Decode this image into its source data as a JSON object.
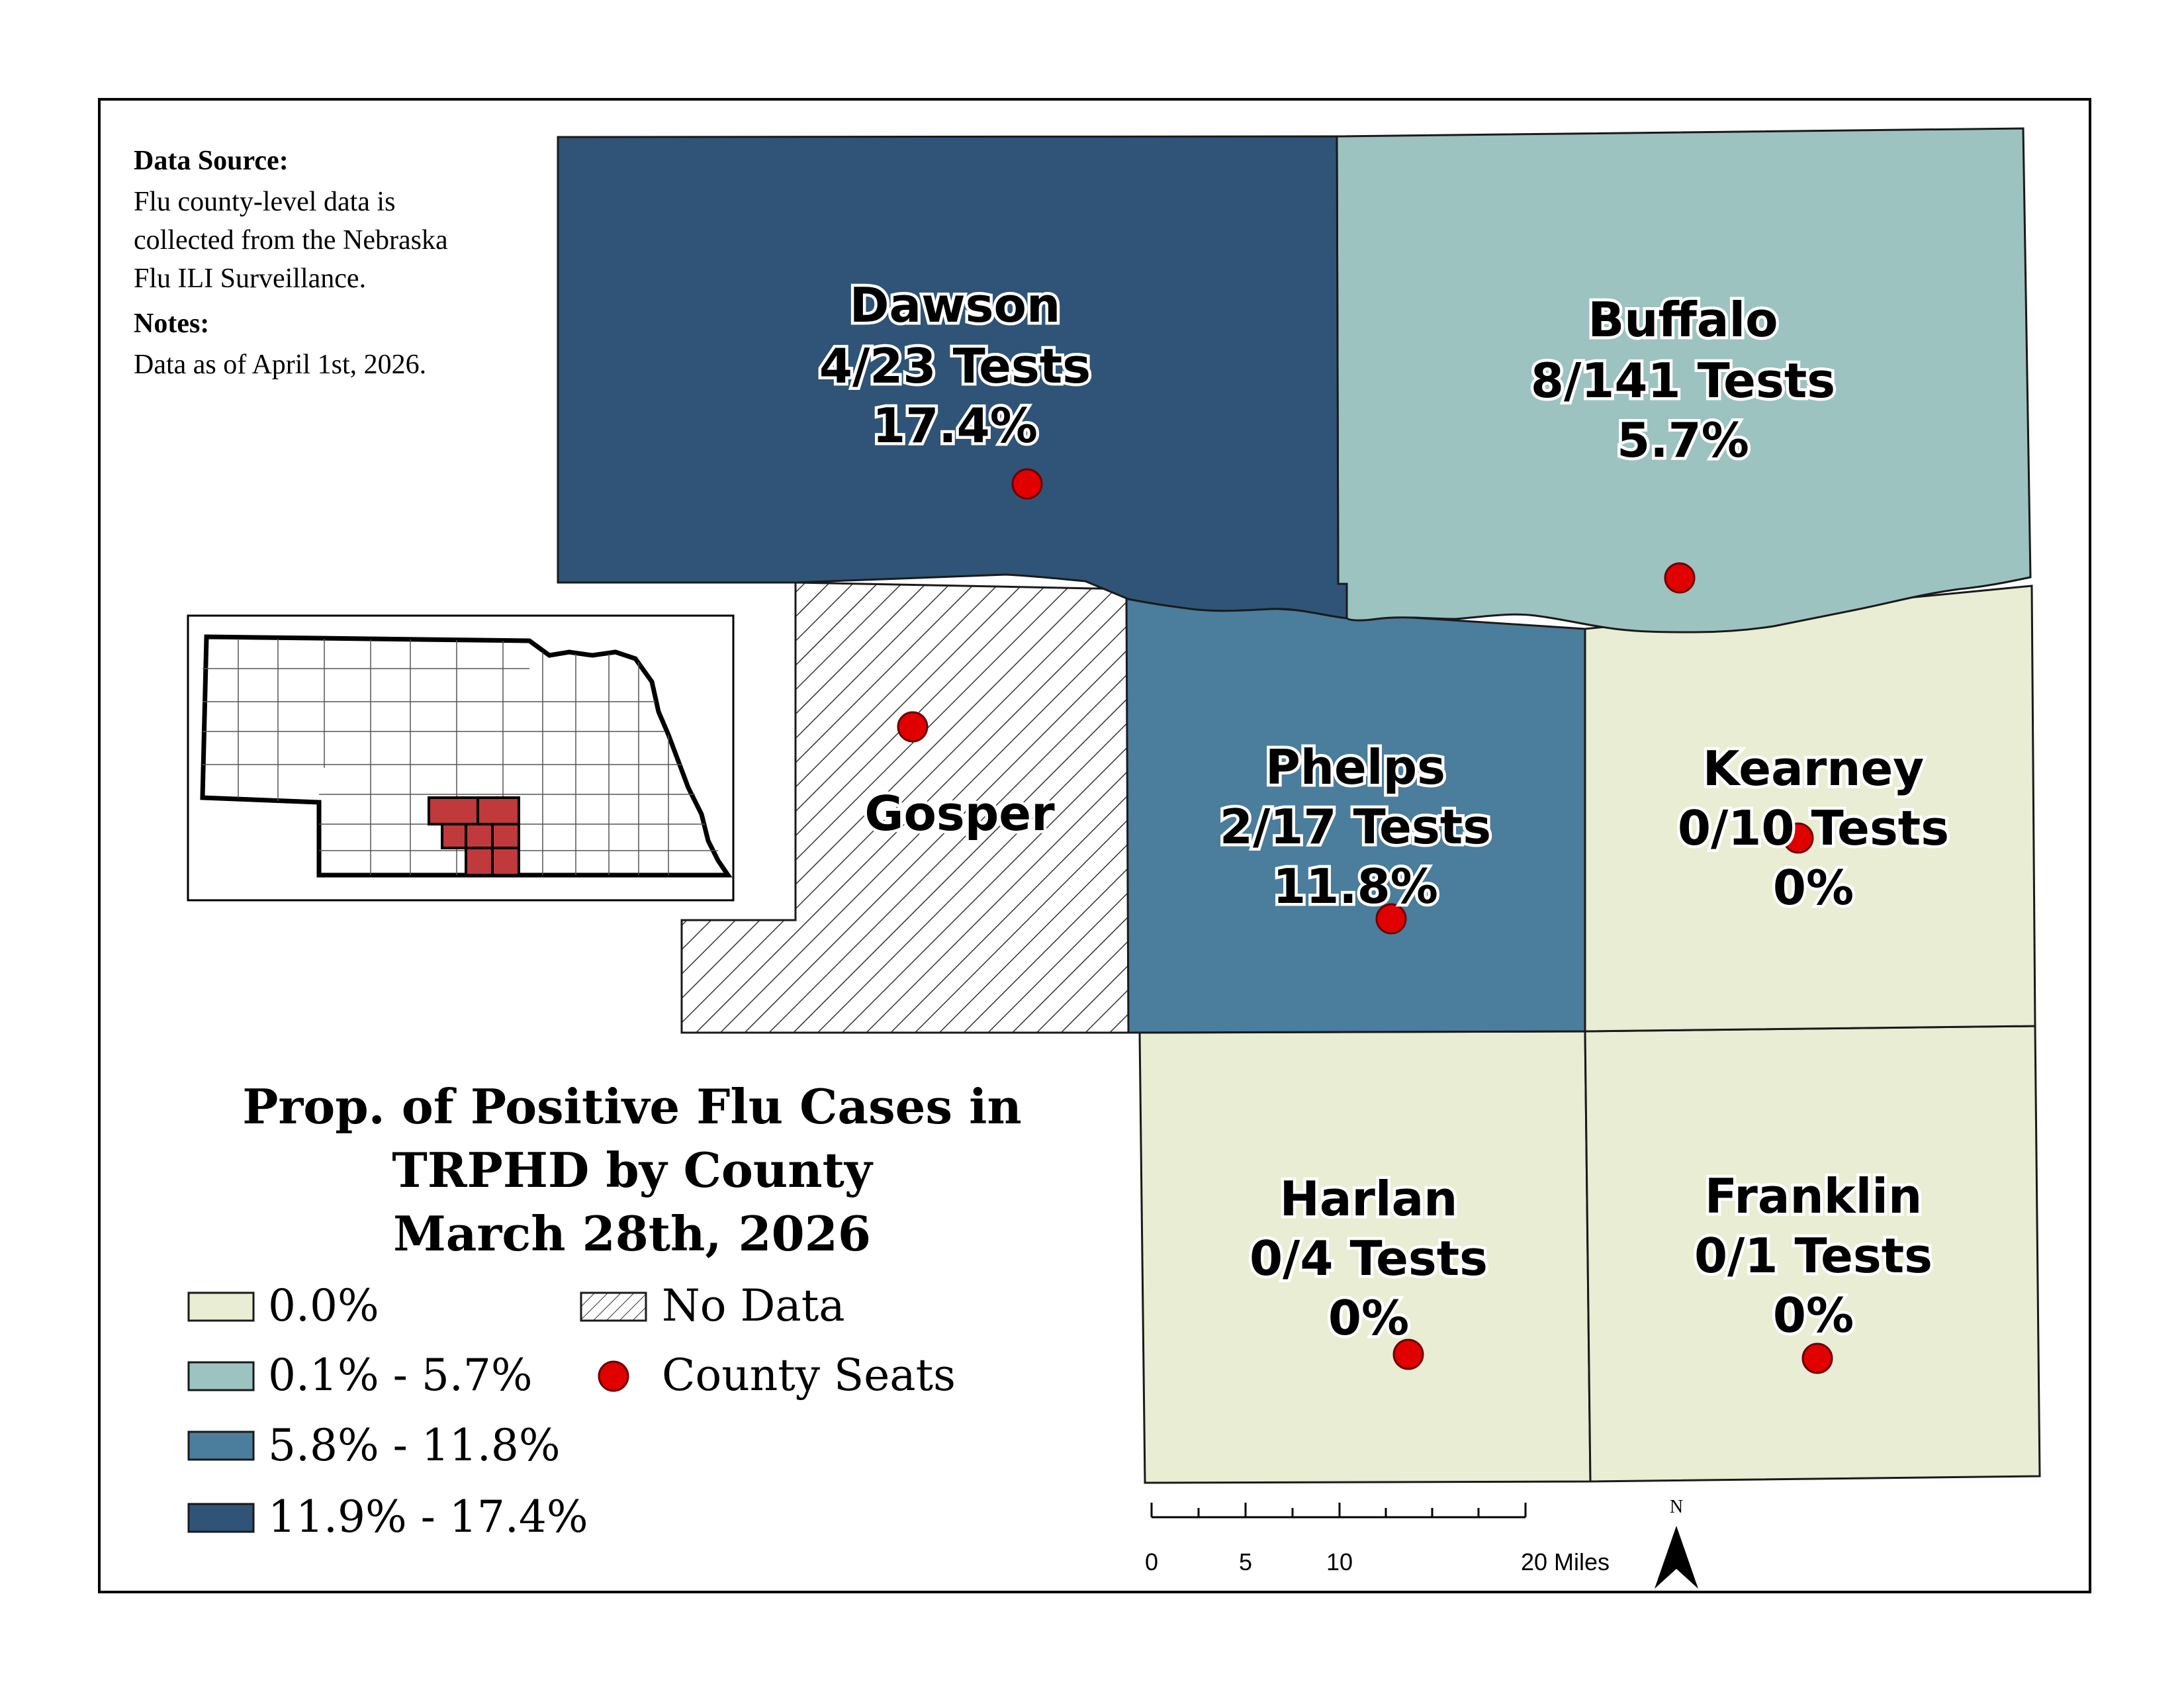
{
  "source": {
    "heading": "Data Source:",
    "lines": [
      "Flu county-level data is",
      "collected from the Nebraska",
      "Flu ILI Surveillance."
    ],
    "notes_heading": "Notes:",
    "notes": "Data as of April 1st, 2026."
  },
  "title": {
    "line1": "Prop. of Positive Flu Cases in",
    "line2": "TRPHD by County",
    "line3": "March 28th, 2026"
  },
  "legend": {
    "classes": [
      {
        "label": "0.0%",
        "color": "#e8edd4"
      },
      {
        "label": "0.1% - 5.7%",
        "color": "#9cc3c0"
      },
      {
        "label": "5.8% - 11.8%",
        "color": "#4b7d9c"
      },
      {
        "label": "11.9% - 17.4%",
        "color": "#2f5477"
      }
    ],
    "no_data": "No Data",
    "county_seats": "County Seats"
  },
  "counties": {
    "dawson": {
      "name": "Dawson",
      "tests": "4/23 Tests",
      "pct": "17.4%"
    },
    "buffalo": {
      "name": "Buffalo",
      "tests": "8/141 Tests",
      "pct": "5.7%"
    },
    "gosper": {
      "name": "Gosper"
    },
    "phelps": {
      "name": "Phelps",
      "tests": "2/17 Tests",
      "pct": "11.8%"
    },
    "kearney": {
      "name": "Kearney",
      "tests": "0/10 Tests",
      "pct": "0%"
    },
    "harlan": {
      "name": "Harlan",
      "tests": "0/4 Tests",
      "pct": "0%"
    },
    "franklin": {
      "name": "Franklin",
      "tests": "0/1 Tests",
      "pct": "0%"
    }
  },
  "scale_bar": {
    "ticks": [
      "0",
      "5",
      "10",
      "20 Miles"
    ]
  },
  "north_arrow": "N",
  "colors": {
    "highlight_counties": "#c0393b",
    "county_seat": "#e00000"
  }
}
